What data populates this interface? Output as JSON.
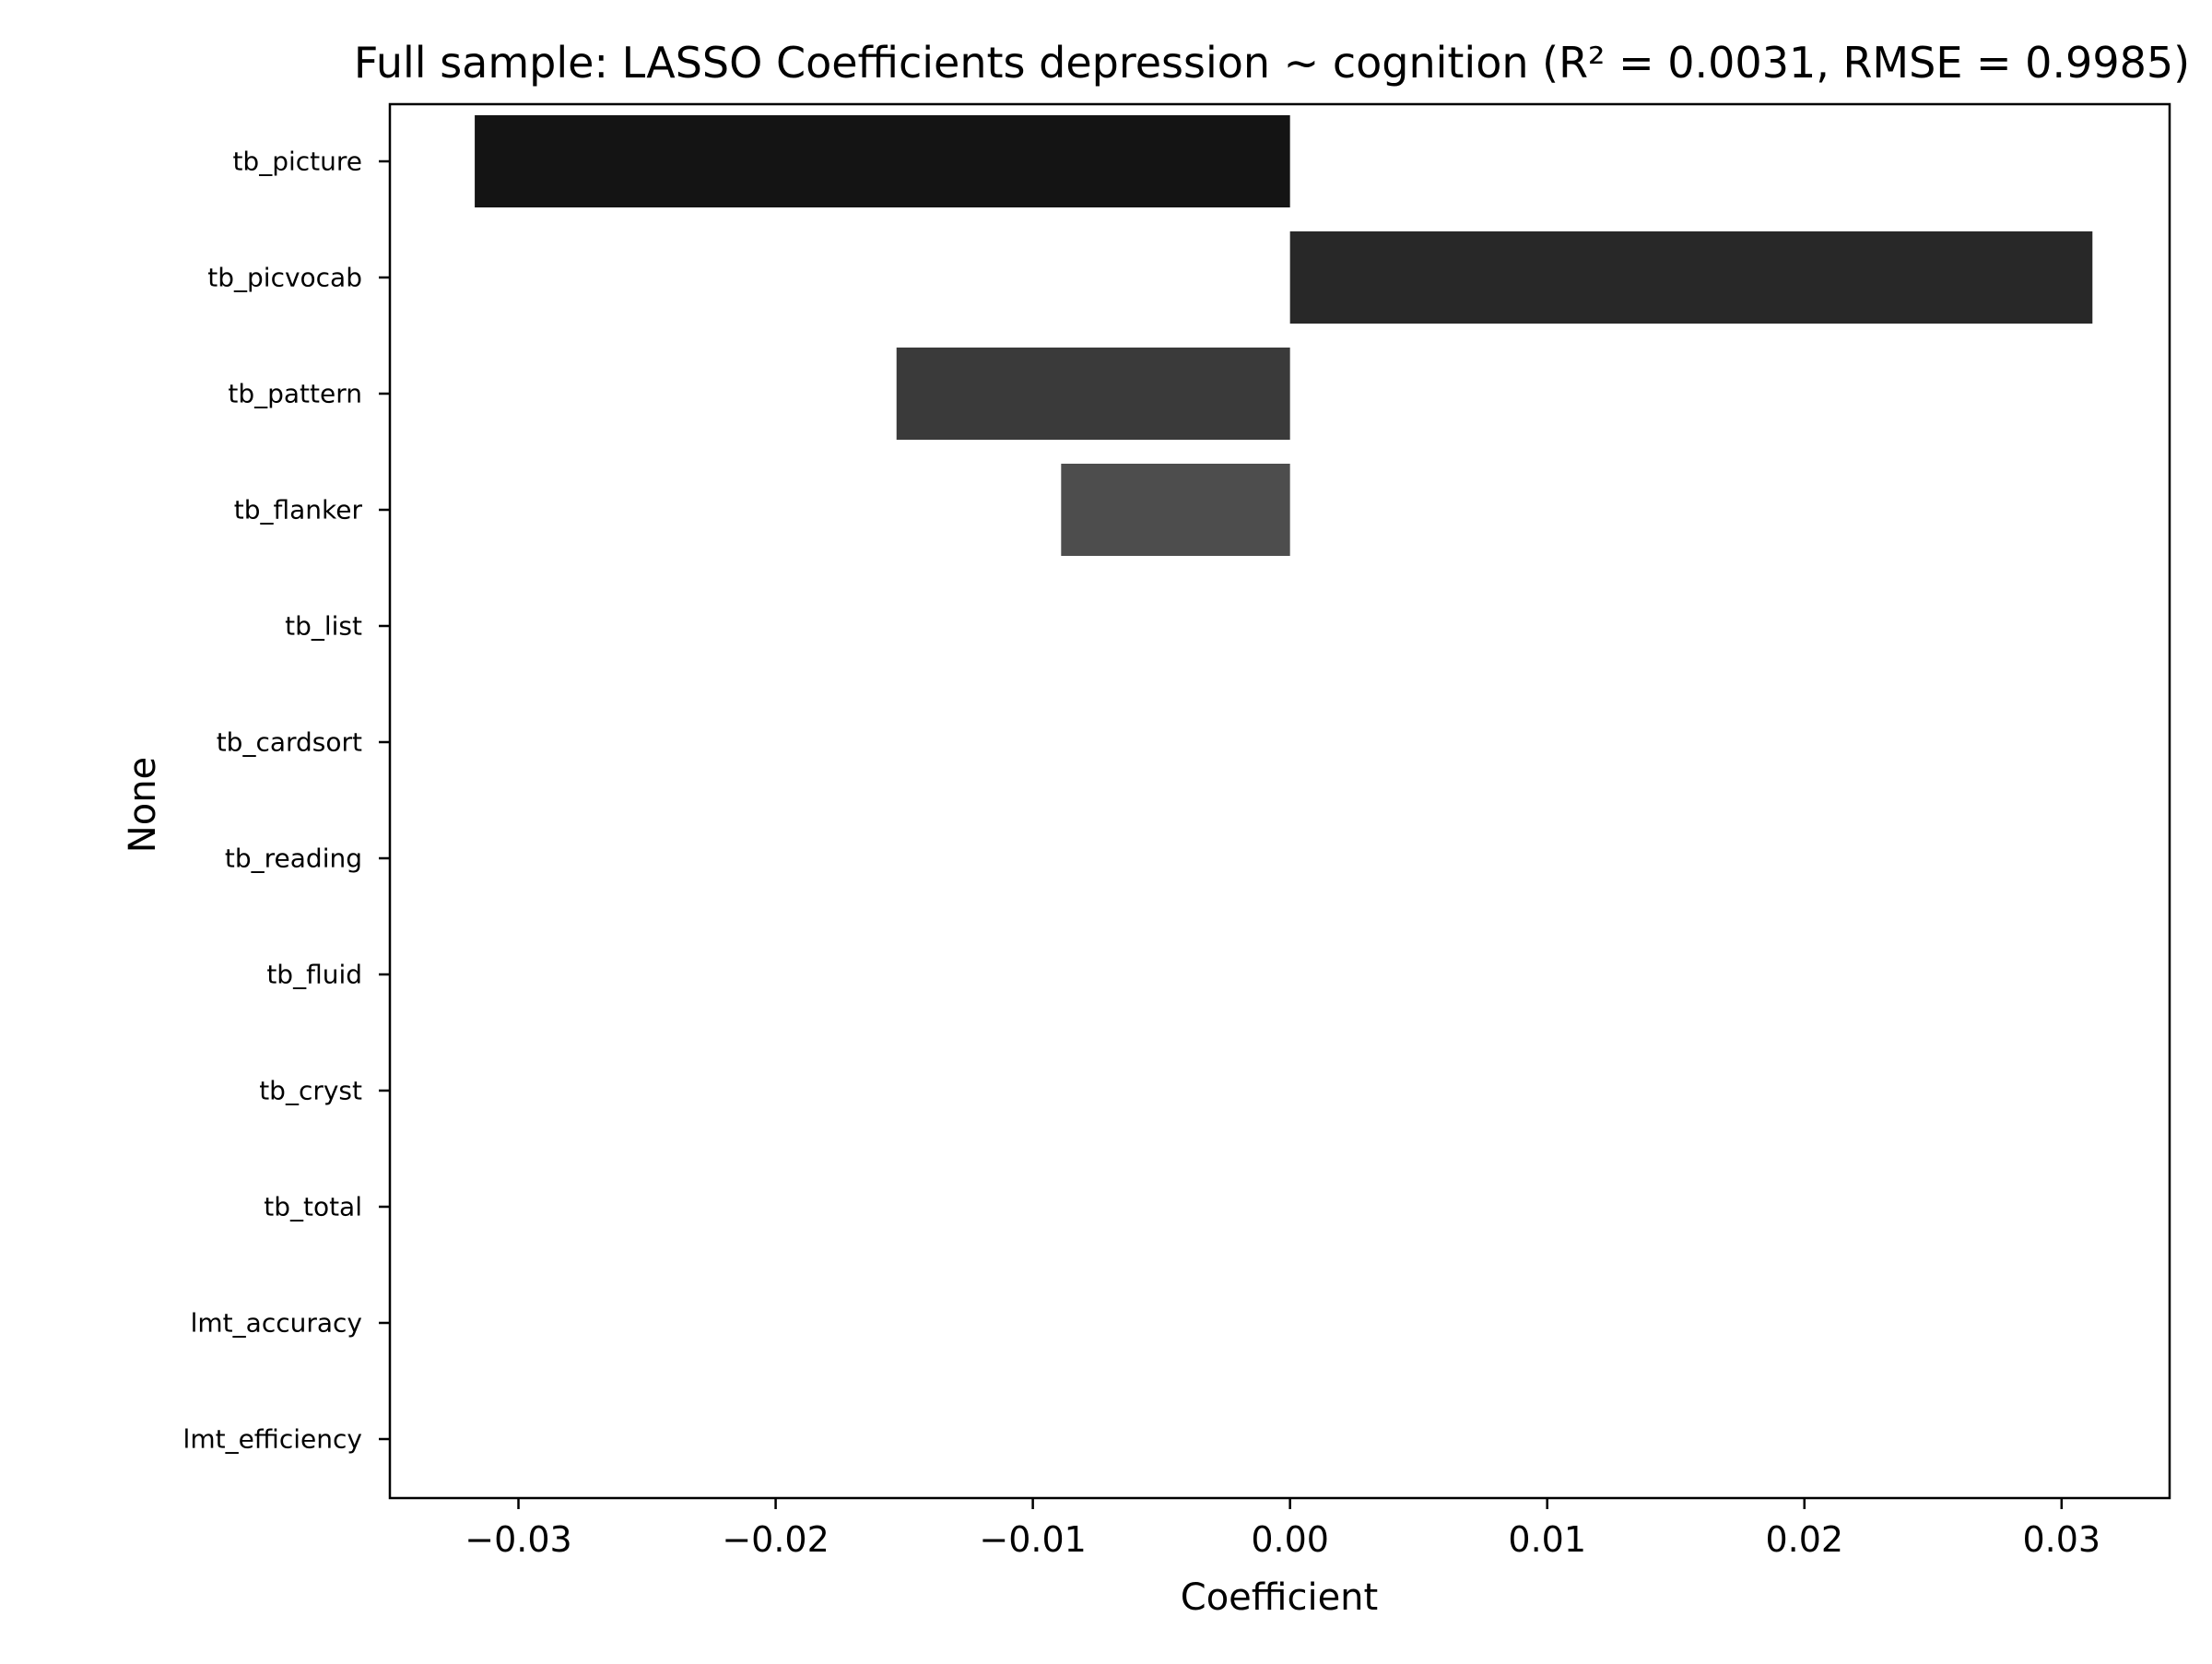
{
  "chart_data": {
    "type": "bar",
    "orientation": "horizontal",
    "title": "Full sample: LASSO Coefficients depression ~ cognition (R² = 0.0031, RMSE = 0.9985)",
    "xlabel": "Coefficient",
    "ylabel": "None",
    "categories": [
      "tb_picture",
      "tb_picvocab",
      "tb_pattern",
      "tb_flanker",
      "tb_list",
      "tb_cardsort",
      "tb_reading",
      "tb_fluid",
      "tb_cryst",
      "tb_total",
      "lmt_accuracy",
      "lmt_efficiency"
    ],
    "values": [
      -0.0317,
      0.0312,
      -0.0153,
      -0.0089,
      0,
      0,
      0,
      0,
      0,
      0,
      0,
      0
    ],
    "bar_colors": [
      "#141414",
      "#282828",
      "#3a3a3a",
      "#4d4d4d",
      "#5f5f5f",
      "#717171",
      "#838383",
      "#959595",
      "#a7a7a7",
      "#b9b9b9",
      "#cbcbcb",
      "#dddddd"
    ],
    "xlim": [
      -0.035,
      0.0342
    ],
    "xticks": [
      -0.03,
      -0.02,
      -0.01,
      0.0,
      0.01,
      0.02,
      0.03
    ],
    "xtick_labels": [
      "−0.03",
      "−0.02",
      "−0.01",
      "0.00",
      "0.01",
      "0.02",
      "0.03"
    ],
    "grid": false,
    "legend": "none"
  }
}
